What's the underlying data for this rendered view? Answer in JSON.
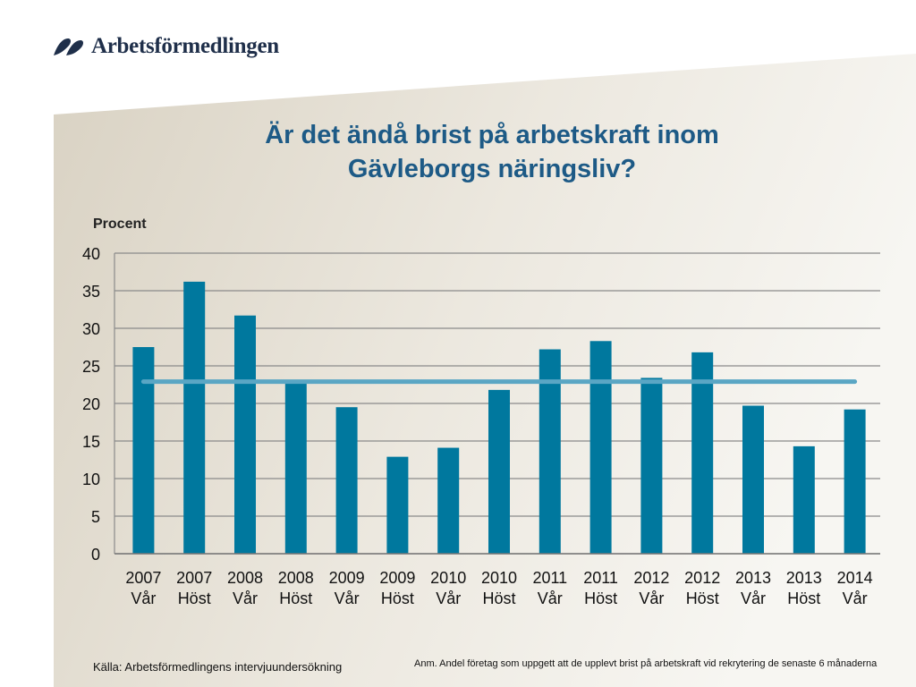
{
  "logo": {
    "name": "Arbetsförmedlingen",
    "icon": "arbetsformedlingen-logo-icon"
  },
  "title_line1": "Är det ändå brist på arbetskraft inom",
  "title_line2": "Gävleborgs näringsliv?",
  "source": "Källa: Arbetsförmedlingens intervjuundersökning",
  "note": "Anm. Andel företag som uppgett att de upplevt brist på arbetskraft vid rekrytering de senaste 6 månaderna",
  "colors": {
    "bar": "#00789e",
    "avg_line": "#5aa6c4",
    "title": "#1d5a86"
  },
  "chart_data": {
    "type": "bar",
    "ylabel": "Procent",
    "ylim": [
      0,
      40
    ],
    "yticks": [
      0,
      5,
      10,
      15,
      20,
      25,
      30,
      35,
      40
    ],
    "grid": true,
    "categories": [
      [
        "2007",
        "Vår"
      ],
      [
        "2007",
        "Höst"
      ],
      [
        "2008",
        "Vår"
      ],
      [
        "2008",
        "Höst"
      ],
      [
        "2009",
        "Vår"
      ],
      [
        "2009",
        "Höst"
      ],
      [
        "2010",
        "Vår"
      ],
      [
        "2010",
        "Höst"
      ],
      [
        "2011",
        "Vår"
      ],
      [
        "2011",
        "Höst"
      ],
      [
        "2012",
        "Vår"
      ],
      [
        "2012",
        "Höst"
      ],
      [
        "2013",
        "Vår"
      ],
      [
        "2013",
        "Höst"
      ],
      [
        "2014",
        "Vår"
      ]
    ],
    "values": [
      27.5,
      36.2,
      31.7,
      23.0,
      19.5,
      12.9,
      14.1,
      21.8,
      27.2,
      28.3,
      23.4,
      26.8,
      19.7,
      14.3,
      19.2
    ],
    "average_line": 22.9
  }
}
